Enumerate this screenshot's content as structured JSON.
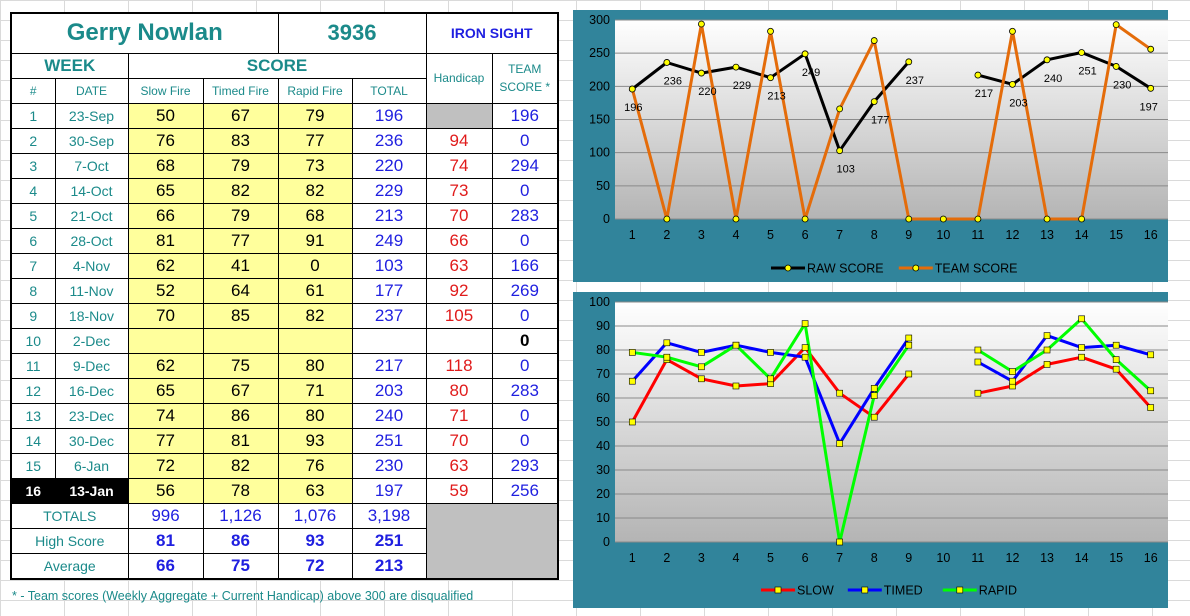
{
  "header": {
    "name": "Gerry Nowlan",
    "number": "3936",
    "category": "IRON SIGHT",
    "week_label": "WEEK",
    "score_label": "SCORE",
    "handicap_label": "Handicap",
    "team_label_1": "TEAM",
    "team_label_2": "SCORE *",
    "col_num": "#",
    "col_date": "DATE",
    "col_slow": "Slow Fire",
    "col_timed": "Timed Fire",
    "col_rapid": "Rapid Fire",
    "col_total": "TOTAL"
  },
  "rows": [
    {
      "num": "1",
      "date": "23-Sep",
      "slow": "50",
      "timed": "67",
      "rapid": "79",
      "total": "196",
      "handicap": "",
      "team": "196"
    },
    {
      "num": "2",
      "date": "30-Sep",
      "slow": "76",
      "timed": "83",
      "rapid": "77",
      "total": "236",
      "handicap": "94",
      "team": "0"
    },
    {
      "num": "3",
      "date": "7-Oct",
      "slow": "68",
      "timed": "79",
      "rapid": "73",
      "total": "220",
      "handicap": "74",
      "team": "294"
    },
    {
      "num": "4",
      "date": "14-Oct",
      "slow": "65",
      "timed": "82",
      "rapid": "82",
      "total": "229",
      "handicap": "73",
      "team": "0"
    },
    {
      "num": "5",
      "date": "21-Oct",
      "slow": "66",
      "timed": "79",
      "rapid": "68",
      "total": "213",
      "handicap": "70",
      "team": "283"
    },
    {
      "num": "6",
      "date": "28-Oct",
      "slow": "81",
      "timed": "77",
      "rapid": "91",
      "total": "249",
      "handicap": "66",
      "team": "0"
    },
    {
      "num": "7",
      "date": "4-Nov",
      "slow": "62",
      "timed": "41",
      "rapid": "0",
      "total": "103",
      "handicap": "63",
      "team": "166"
    },
    {
      "num": "8",
      "date": "11-Nov",
      "slow": "52",
      "timed": "64",
      "rapid": "61",
      "total": "177",
      "handicap": "92",
      "team": "269"
    },
    {
      "num": "9",
      "date": "18-Nov",
      "slow": "70",
      "timed": "85",
      "rapid": "82",
      "total": "237",
      "handicap": "105",
      "team": "0"
    },
    {
      "num": "10",
      "date": "2-Dec",
      "slow": "",
      "timed": "",
      "rapid": "",
      "total": "",
      "handicap": "",
      "team": "0"
    },
    {
      "num": "11",
      "date": "9-Dec",
      "slow": "62",
      "timed": "75",
      "rapid": "80",
      "total": "217",
      "handicap": "118",
      "team": "0"
    },
    {
      "num": "12",
      "date": "16-Dec",
      "slow": "65",
      "timed": "67",
      "rapid": "71",
      "total": "203",
      "handicap": "80",
      "team": "283"
    },
    {
      "num": "13",
      "date": "23-Dec",
      "slow": "74",
      "timed": "86",
      "rapid": "80",
      "total": "240",
      "handicap": "71",
      "team": "0"
    },
    {
      "num": "14",
      "date": "30-Dec",
      "slow": "77",
      "timed": "81",
      "rapid": "93",
      "total": "251",
      "handicap": "70",
      "team": "0"
    },
    {
      "num": "15",
      "date": "6-Jan",
      "slow": "72",
      "timed": "82",
      "rapid": "76",
      "total": "230",
      "handicap": "63",
      "team": "293"
    },
    {
      "num": "16",
      "date": "13-Jan",
      "slow": "56",
      "timed": "78",
      "rapid": "63",
      "total": "197",
      "handicap": "59",
      "team": "256"
    }
  ],
  "summary": {
    "totals_label": "TOTALS",
    "totals": {
      "slow": "996",
      "timed": "1,126",
      "rapid": "1,076",
      "total": "3,198"
    },
    "high_label": "High Score",
    "high": {
      "slow": "81",
      "timed": "86",
      "rapid": "93",
      "total": "251"
    },
    "avg_label": "Average",
    "avg": {
      "slow": "66",
      "timed": "75",
      "rapid": "72",
      "total": "213"
    }
  },
  "footnote": "* - Team scores (Weekly Aggregate + Current Handicap) above 300 are disqualified",
  "colors": {
    "panel": "#31849b",
    "raw": "#000000",
    "team": "#e46c0a",
    "slow": "#ff0000",
    "timed": "#0000ff",
    "rapid": "#00ff00",
    "marker": "#ffff00"
  },
  "chart_data": [
    {
      "type": "line",
      "x": [
        1,
        2,
        3,
        4,
        5,
        6,
        7,
        8,
        9,
        10,
        11,
        12,
        13,
        14,
        15,
        16
      ],
      "ylim": [
        0,
        300
      ],
      "yticks": [
        0,
        50,
        100,
        150,
        200,
        250,
        300
      ],
      "grid": true,
      "legend": "bottom",
      "series": [
        {
          "name": "RAW SCORE",
          "color": "#000000",
          "values": [
            196,
            236,
            220,
            229,
            213,
            249,
            103,
            177,
            237,
            null,
            217,
            203,
            240,
            251,
            230,
            197
          ],
          "data_labels": true
        },
        {
          "name": "TEAM SCORE",
          "color": "#e46c0a",
          "values": [
            196,
            0,
            294,
            0,
            283,
            0,
            166,
            269,
            0,
            0,
            0,
            283,
            0,
            0,
            293,
            256
          ],
          "data_labels": false
        }
      ]
    },
    {
      "type": "line",
      "x": [
        1,
        2,
        3,
        4,
        5,
        6,
        7,
        8,
        9,
        10,
        11,
        12,
        13,
        14,
        15,
        16
      ],
      "ylim": [
        0,
        100
      ],
      "yticks": [
        0,
        10,
        20,
        30,
        40,
        50,
        60,
        70,
        80,
        90,
        100
      ],
      "grid": true,
      "legend": "bottom",
      "series": [
        {
          "name": "SLOW",
          "color": "#ff0000",
          "values": [
            50,
            76,
            68,
            65,
            66,
            81,
            62,
            52,
            70,
            null,
            62,
            65,
            74,
            77,
            72,
            56
          ]
        },
        {
          "name": "TIMED",
          "color": "#0000ff",
          "values": [
            67,
            83,
            79,
            82,
            79,
            77,
            41,
            64,
            85,
            null,
            75,
            67,
            86,
            81,
            82,
            78
          ]
        },
        {
          "name": "RAPID",
          "color": "#00ff00",
          "values": [
            79,
            77,
            73,
            82,
            68,
            91,
            0,
            61,
            82,
            null,
            80,
            71,
            80,
            93,
            76,
            63
          ]
        }
      ]
    }
  ]
}
